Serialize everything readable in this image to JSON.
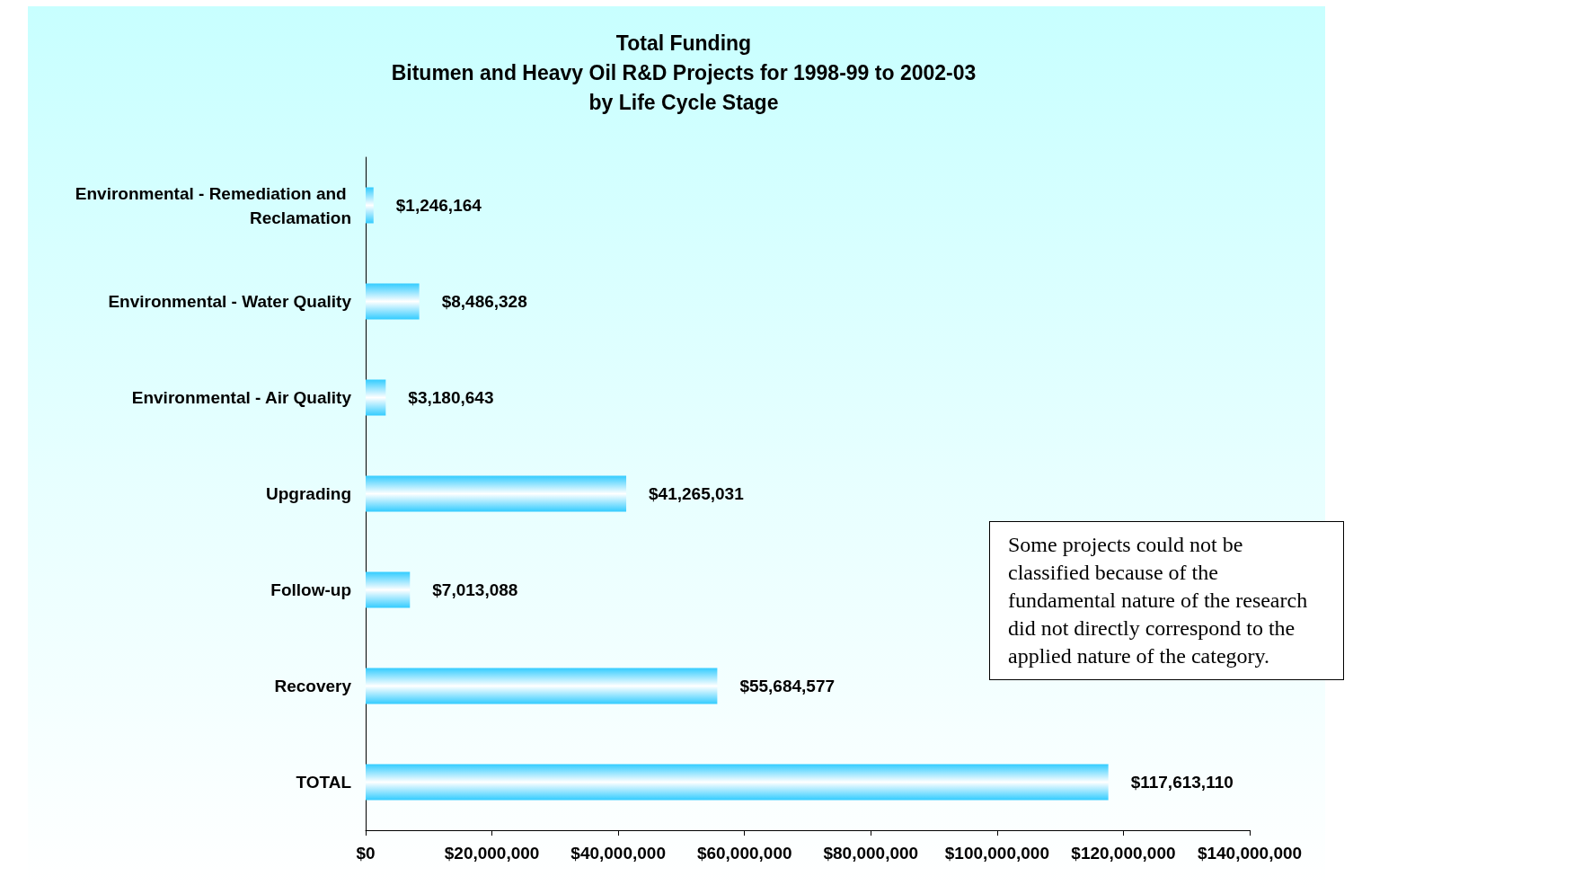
{
  "chart_data": {
    "type": "bar",
    "orientation": "horizontal",
    "title": "Total Funding",
    "subtitle": "Bitumen and Heavy Oil R&D Projects for 1998-99 to 2002-03 by Life Cycle Stage",
    "categories": [
      "Environmental - Remediation and Reclamation",
      "Environmental - Water Quality",
      "Environmental - Air Quality",
      "Upgrading",
      "Follow-up",
      "Recovery",
      "TOTAL"
    ],
    "values": [
      1246164,
      8486328,
      3180643,
      41265031,
      7013088,
      55684577,
      117613110
    ],
    "value_labels": [
      "$1,246,164",
      "$8,486,328",
      "$3,180,643",
      "$41,265,031",
      "$7,013,088",
      "$55,684,577",
      "$117,613,110"
    ],
    "color": "#33ccff",
    "xlim": [
      0,
      140000000
    ],
    "xticks": [
      {
        "value": 0,
        "label": "$0"
      },
      {
        "value": 20000000,
        "label": "$20,000,000"
      },
      {
        "value": 40000000,
        "label": "$40,000,000"
      },
      {
        "value": 60000000,
        "label": "$60,000,000"
      },
      {
        "value": 80000000,
        "label": "$80,000,000"
      },
      {
        "value": 100000000,
        "label": "$100,000,000"
      },
      {
        "value": 120000000,
        "label": "$120,000,000"
      },
      {
        "value": 140000000,
        "label": "$140,000,000"
      }
    ],
    "grid": false,
    "annotations": [
      "Some projects could not be classified because of the fundamental nature of the research did not directly correspond to the applied nature of the category."
    ]
  }
}
